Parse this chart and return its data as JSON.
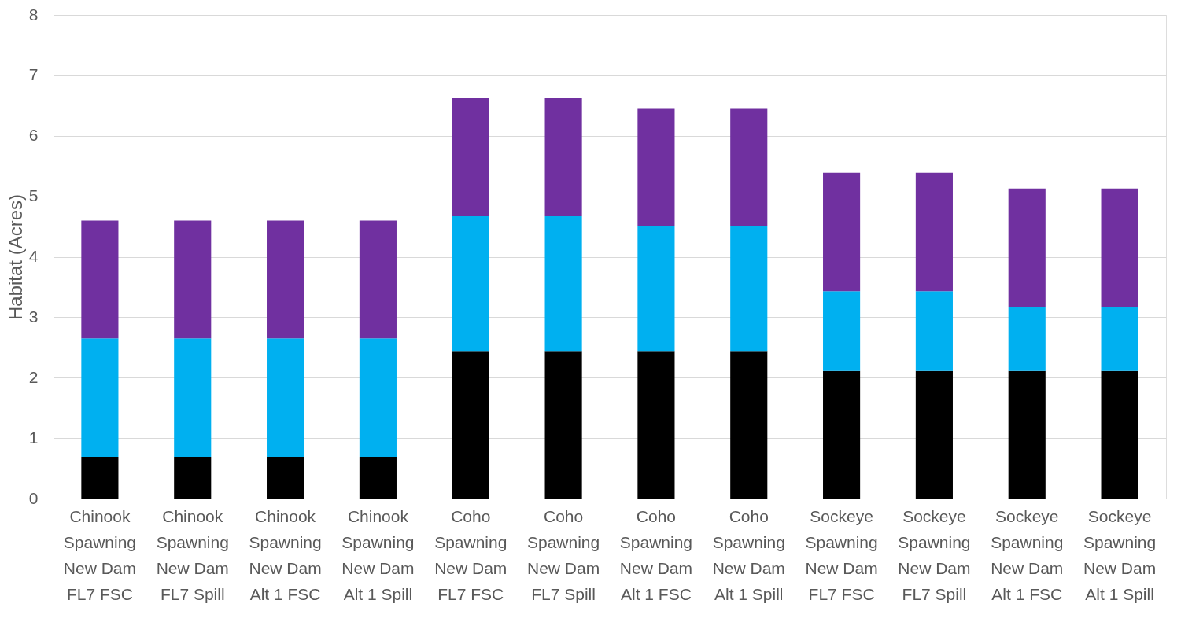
{
  "chart_data": {
    "type": "bar",
    "stacked": true,
    "ylabel": "Habitat (Acres)",
    "categories": [
      "Chinook\nSpawning\nNew Dam\nFL7 FSC",
      "Chinook\nSpawning\nNew Dam\nFL7 Spill",
      "Chinook\nSpawning\nNew Dam\nAlt 1 FSC",
      "Chinook\nSpawning\nNew Dam\nAlt 1 Spill",
      "Coho\nSpawning\nNew Dam\nFL7 FSC",
      "Coho\nSpawning\nNew Dam\nFL7 Spill",
      "Coho\nSpawning\nNew Dam\nAlt 1 FSC",
      "Coho\nSpawning\nNew Dam\nAlt 1 Spill",
      "Sockeye\nSpawning\nNew Dam\nFL7 FSC",
      "Sockeye\nSpawning\nNew Dam\nFL7 Spill",
      "Sockeye\nSpawning\nNew Dam\nAlt 1 FSC",
      "Sockeye\nSpawning\nNew Dam\nAlt 1 Spill"
    ],
    "series": [
      {
        "color": "#000000",
        "values": [
          0.69,
          0.69,
          0.69,
          0.69,
          2.43,
          2.43,
          2.43,
          2.43,
          2.11,
          2.11,
          2.11,
          2.11
        ]
      },
      {
        "color": "#00b0f0",
        "values": [
          1.96,
          1.96,
          1.96,
          1.96,
          2.24,
          2.24,
          2.07,
          2.07,
          1.32,
          1.32,
          1.06,
          1.06
        ]
      },
      {
        "color": "#7030a0",
        "values": [
          1.95,
          1.95,
          1.95,
          1.95,
          1.96,
          1.96,
          1.96,
          1.96,
          1.96,
          1.96,
          1.96,
          1.96
        ]
      }
    ],
    "ylim": [
      0,
      8
    ],
    "yticks": [
      0,
      1,
      2,
      3,
      4,
      5,
      6,
      7,
      8
    ],
    "grid": "y"
  }
}
